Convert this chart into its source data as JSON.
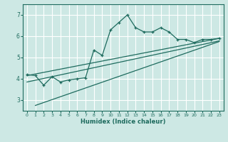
{
  "xlabel": "Humidex (Indice chaleur)",
  "xlim": [
    -0.5,
    23.5
  ],
  "ylim": [
    2.5,
    7.5
  ],
  "yticks": [
    3,
    4,
    5,
    6,
    7
  ],
  "xticks": [
    0,
    1,
    2,
    3,
    4,
    5,
    6,
    7,
    8,
    9,
    10,
    11,
    12,
    13,
    14,
    15,
    16,
    17,
    18,
    19,
    20,
    21,
    22,
    23
  ],
  "bg_color": "#cde8e4",
  "grid_color": "#ffffff",
  "line_color": "#1e6b5e",
  "line1_x": [
    0,
    1,
    2,
    3,
    4,
    5,
    6,
    7,
    8,
    9,
    10,
    11,
    12,
    13,
    14,
    15,
    16,
    17,
    18,
    19,
    20,
    21,
    22,
    23
  ],
  "line1_y": [
    4.2,
    4.15,
    3.7,
    4.1,
    3.85,
    3.95,
    4.0,
    4.05,
    5.35,
    5.1,
    6.3,
    6.65,
    7.0,
    6.4,
    6.2,
    6.2,
    6.4,
    6.2,
    5.85,
    5.85,
    5.7,
    5.85,
    5.85,
    5.9
  ],
  "line2_x": [
    0,
    23
  ],
  "line2_y": [
    4.15,
    5.9
  ],
  "line3_x": [
    0,
    23
  ],
  "line3_y": [
    3.85,
    5.78
  ],
  "line4_x": [
    1,
    23
  ],
  "line4_y": [
    2.75,
    5.75
  ]
}
